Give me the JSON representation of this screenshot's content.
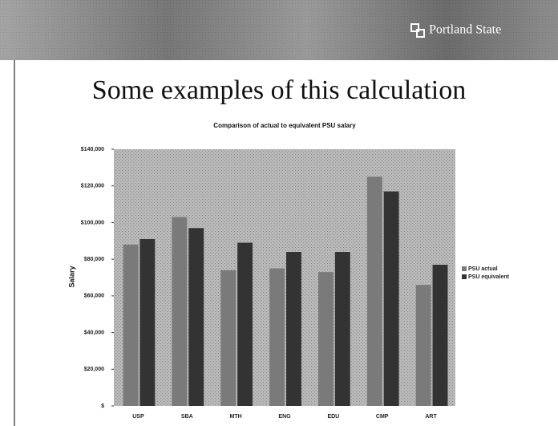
{
  "header": {
    "brand": "Portland State"
  },
  "slide_title": "Some examples of this calculation",
  "chart_data": {
    "type": "bar",
    "title": "Comparison of actual to equivalent PSU salary",
    "y_label": "Salary",
    "categories": [
      "USP",
      "SBA",
      "MTH",
      "ENG",
      "EDU",
      "CMP",
      "ART"
    ],
    "series": [
      {
        "name": "PSU actual",
        "color": "#7a7a7a",
        "values": [
          88000,
          103000,
          74000,
          75000,
          73000,
          125000,
          66000
        ]
      },
      {
        "name": "PSU equivalent",
        "color": "#333333",
        "values": [
          91000,
          97000,
          89000,
          84000,
          84000,
          117000,
          77000
        ]
      }
    ],
    "ylim": [
      0,
      140000
    ],
    "yticks": [
      {
        "value": 0,
        "label": "$"
      },
      {
        "value": 20000,
        "label": "$20,000"
      },
      {
        "value": 40000,
        "label": "$40,000"
      },
      {
        "value": 60000,
        "label": "$60,000"
      },
      {
        "value": 80000,
        "label": "$80,000"
      },
      {
        "value": 100000,
        "label": "$100,000"
      },
      {
        "value": 120000,
        "label": "$120,000"
      },
      {
        "value": 140000,
        "label": "$140,000"
      }
    ],
    "legend": "right"
  }
}
